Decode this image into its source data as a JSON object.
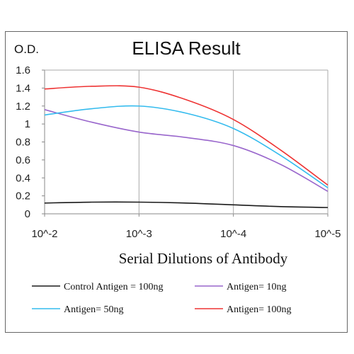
{
  "chart_data": {
    "type": "line",
    "title": "ELISA Result",
    "ylabel": "O.D.",
    "xlabel": "Serial Dilutions  of Antibody",
    "x_tick_labels": [
      "10^-2",
      "10^-3",
      "10^-4",
      "10^-5"
    ],
    "y_tick_labels": [
      "0",
      "0.2",
      "0.4",
      "0.6",
      "0.8",
      "1",
      "1.2",
      "1.4",
      "1.6"
    ],
    "ylim": [
      0,
      1.6
    ],
    "grid": "vertical-lines",
    "legend_position": "bottom",
    "x_points": [
      "10^-2",
      "10^-2.5",
      "10^-3",
      "10^-3.5",
      "10^-4",
      "10^-4.5",
      "10^-5"
    ],
    "series": [
      {
        "name": "Control Antigen = 100ng",
        "color": "#1a1a1a",
        "values": [
          0.12,
          0.13,
          0.13,
          0.12,
          0.1,
          0.08,
          0.07
        ]
      },
      {
        "name": "Antigen= 10ng",
        "color": "#9966cc",
        "values": [
          1.16,
          1.02,
          0.91,
          0.85,
          0.76,
          0.55,
          0.25
        ]
      },
      {
        "name": "Antigen= 50ng",
        "color": "#33bbee",
        "values": [
          1.1,
          1.17,
          1.2,
          1.12,
          0.95,
          0.65,
          0.29
        ]
      },
      {
        "name": "Antigen= 100ng",
        "color": "#ee3333",
        "values": [
          1.39,
          1.42,
          1.41,
          1.27,
          1.05,
          0.71,
          0.32
        ]
      }
    ]
  }
}
